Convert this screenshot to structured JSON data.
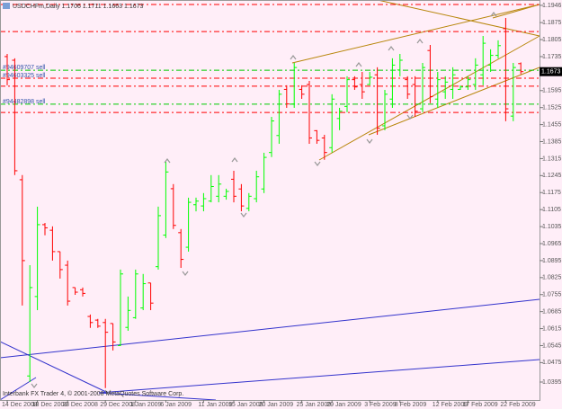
{
  "chart_data": {
    "type": "ohlc",
    "title": "USDCHFm,Daily  1.1706 1.1711 1.1663 1.1673",
    "footer": "Interbank FX Trader 4, © 2001-2008 MetaQuotes Software Corp.",
    "categories": [
      "14 Dec 2008",
      null,
      null,
      null,
      "18 Dec 2008",
      null,
      null,
      null,
      "23 Dec 2008",
      null,
      null,
      null,
      null,
      "29 Dec 2008",
      null,
      null,
      null,
      "1 Jan 2009",
      null,
      null,
      null,
      "6 Jan 2009",
      null,
      null,
      null,
      null,
      "11 Jan 2009",
      null,
      null,
      null,
      "15 Jan 2009",
      null,
      null,
      null,
      "20 Jan 2009",
      null,
      null,
      null,
      null,
      "25 Jan 2009",
      null,
      null,
      null,
      "29 Jan 2009",
      null,
      null,
      null,
      null,
      "3 Feb 2009",
      null,
      null,
      null,
      "8 Feb 2009",
      null,
      null,
      null,
      null,
      "12 Feb 2009",
      null,
      null,
      null,
      "17 Feb 2009",
      null,
      null,
      null,
      null,
      "22 Feb 2009",
      null,
      null
    ],
    "ohlc": [
      [
        1.1735,
        1.1746,
        1.1617,
        1.164
      ],
      [
        1.172,
        1.1728,
        1.1247,
        1.1265
      ],
      [
        1.1228,
        1.1247,
        1.071,
        1.0895
      ],
      [
        1.042,
        1.0876,
        1.0395,
        1.0784
      ],
      [
        1.0747,
        1.1117,
        1.0691,
        1.1043
      ],
      [
        1.1043,
        1.105,
        1.0999,
        1.103
      ],
      [
        1.102,
        1.1036,
        1.0895,
        1.0932
      ],
      [
        1.0932,
        1.0932,
        1.0821,
        1.0858
      ],
      [
        1.0876,
        1.0895,
        1.071,
        1.0728
      ],
      [
        1.0784,
        1.0784,
        1.0754,
        1.0765
      ],
      [
        1.0775,
        1.0784,
        1.0747,
        1.076
      ],
      [
        1.0665,
        1.0673,
        1.0618,
        1.064
      ],
      [
        1.065,
        1.0655,
        1.0618,
        1.0625
      ],
      [
        1.064,
        1.0655,
        1.037,
        1.06
      ],
      [
        1.0636,
        1.0636,
        1.0525,
        1.056
      ],
      [
        1.0545,
        1.0858,
        1.0543,
        1.084
      ],
      [
        1.062,
        1.0747,
        1.0606,
        1.069
      ],
      [
        1.066,
        1.0858,
        1.0655,
        1.084
      ],
      [
        1.07,
        1.084,
        1.0691,
        1.08
      ],
      [
        1.0803,
        1.0803,
        1.0691,
        1.072
      ],
      [
        1.087,
        1.1117,
        1.0858,
        1.108
      ],
      [
        1.1,
        1.1302,
        1.0988,
        1.126
      ],
      [
        1.1191,
        1.121,
        1.1025,
        1.104
      ],
      [
        1.101,
        1.1025,
        1.0865,
        1.09
      ],
      [
        1.095,
        1.1154,
        1.0932,
        1.1135
      ],
      [
        1.1125,
        1.1154,
        1.1098,
        1.114
      ],
      [
        1.112,
        1.1173,
        1.1098,
        1.115
      ],
      [
        1.114,
        1.1247,
        1.1135,
        1.12
      ],
      [
        1.116,
        1.1247,
        1.1135,
        1.121
      ],
      [
        1.116,
        1.1191,
        1.1146,
        1.118
      ],
      [
        1.123,
        1.1265,
        1.1135,
        1.116
      ],
      [
        1.119,
        1.121,
        1.1098,
        1.112
      ],
      [
        1.111,
        1.1173,
        1.1098,
        1.116
      ],
      [
        1.115,
        1.1265,
        1.1135,
        1.124
      ],
      [
        1.119,
        1.1339,
        1.1173,
        1.132
      ],
      [
        1.134,
        1.1487,
        1.1321,
        1.147
      ],
      [
        1.141,
        1.1598,
        1.1376,
        1.158
      ],
      [
        1.16,
        1.1617,
        1.1524,
        1.154
      ],
      [
        1.154,
        1.1709,
        1.1524,
        1.169
      ],
      [
        1.16,
        1.1617,
        1.1561,
        1.158
      ],
      [
        1.162,
        1.1635,
        1.1376,
        1.14
      ],
      [
        1.143,
        1.1432,
        1.1376,
        1.139
      ],
      [
        1.14,
        1.1413,
        1.131,
        1.134
      ],
      [
        1.136,
        1.158,
        1.134,
        1.156
      ],
      [
        1.148,
        1.1524,
        1.1432,
        1.151
      ],
      [
        1.153,
        1.1654,
        1.1506,
        1.164
      ],
      [
        1.164,
        1.1654,
        1.1598,
        1.161
      ],
      [
        1.162,
        1.1672,
        1.1561,
        1.159
      ],
      [
        1.162,
        1.1672,
        1.1617,
        1.165
      ],
      [
        1.166,
        1.1691,
        1.1413,
        1.144
      ],
      [
        1.145,
        1.1598,
        1.1432,
        1.158
      ],
      [
        1.156,
        1.1728,
        1.1524,
        1.17
      ],
      [
        1.168,
        1.1746,
        1.1654,
        1.172
      ],
      [
        1.164,
        1.1654,
        1.1561,
        1.158
      ],
      [
        1.162,
        1.1654,
        1.1487,
        1.151
      ],
      [
        1.152,
        1.1709,
        1.1506,
        1.169
      ],
      [
        1.176,
        1.1783,
        1.1543,
        1.157
      ],
      [
        1.156,
        1.1672,
        1.1524,
        1.164
      ],
      [
        1.159,
        1.1654,
        1.1561,
        1.163
      ],
      [
        1.16,
        1.1691,
        1.1561,
        1.166
      ],
      [
        1.16,
        1.1617,
        1.1598,
        1.161
      ],
      [
        1.161,
        1.1654,
        1.1598,
        1.164
      ],
      [
        1.162,
        1.1728,
        1.1598,
        1.17
      ],
      [
        1.166,
        1.182,
        1.1617,
        1.179
      ],
      [
        1.17,
        1.1765,
        1.1672,
        1.174
      ],
      [
        1.174,
        1.1802,
        1.1728,
        1.178
      ],
      [
        1.185,
        1.1894,
        1.1469,
        1.152
      ],
      [
        1.149,
        1.1709,
        1.1469,
        1.169
      ],
      [
        1.1706,
        1.1711,
        1.1663,
        1.1673
      ]
    ],
    "up_color": "#00ff00",
    "down_color": "#ff0000",
    "ylim": [
      1.0321,
      1.1968
    ],
    "yticks": [
      1.1946,
      1.1875,
      1.1805,
      1.1735,
      1.1595,
      1.1525,
      1.1455,
      1.1385,
      1.1315,
      1.1245,
      1.1175,
      1.1105,
      1.1035,
      1.0965,
      1.0895,
      1.0825,
      1.0755,
      1.0685,
      1.0615,
      1.0545,
      1.0475,
      1.0395
    ],
    "hlines": [
      {
        "value": 1.1838,
        "color": "#ff0000"
      },
      {
        "value": 1.1679,
        "color": "#00cc00",
        "label": "#94609707 sell"
      },
      {
        "value": 1.1646,
        "color": "#ff0000",
        "label": "#94603325 sell"
      },
      {
        "value": 1.1613,
        "color": "#ff0000"
      },
      {
        "value": 1.1539,
        "color": "#00cc00",
        "label": "#94482898 sell"
      },
      {
        "value": 1.1505,
        "color": "#ff0000"
      }
    ]
  }
}
